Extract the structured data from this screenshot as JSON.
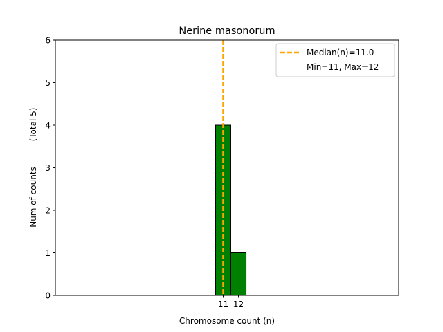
{
  "chart_data": {
    "type": "bar",
    "title": "Nerine masonorum",
    "xlabel": "Chromosome count (n)",
    "ylabel": "Num of counts",
    "ylabel_note": "(Total 5)",
    "categories": [
      "11",
      "12"
    ],
    "bins": [
      {
        "x_start": 10.5,
        "x_end": 11.5,
        "count": 4
      },
      {
        "x_start": 11.5,
        "x_end": 12.5,
        "count": 1
      }
    ],
    "values": [
      4,
      1
    ],
    "xticks": [
      11,
      12
    ],
    "yticks": [
      0,
      1,
      2,
      3,
      4,
      5,
      6
    ],
    "xlim": [
      0,
      22.5
    ],
    "ylim": [
      0,
      6
    ],
    "median": 11.0,
    "baseline_x_end": 15.5,
    "grid": false,
    "legend_position": "top-right",
    "legend": [
      {
        "label": "Median(n)=11.0",
        "style": "dashed-line"
      },
      {
        "label": "Min=11, Max=12",
        "style": "none"
      }
    ],
    "colors": {
      "bar_fill": "#008000",
      "bar_edge": "#000000",
      "median_line": "#FFA500"
    }
  }
}
